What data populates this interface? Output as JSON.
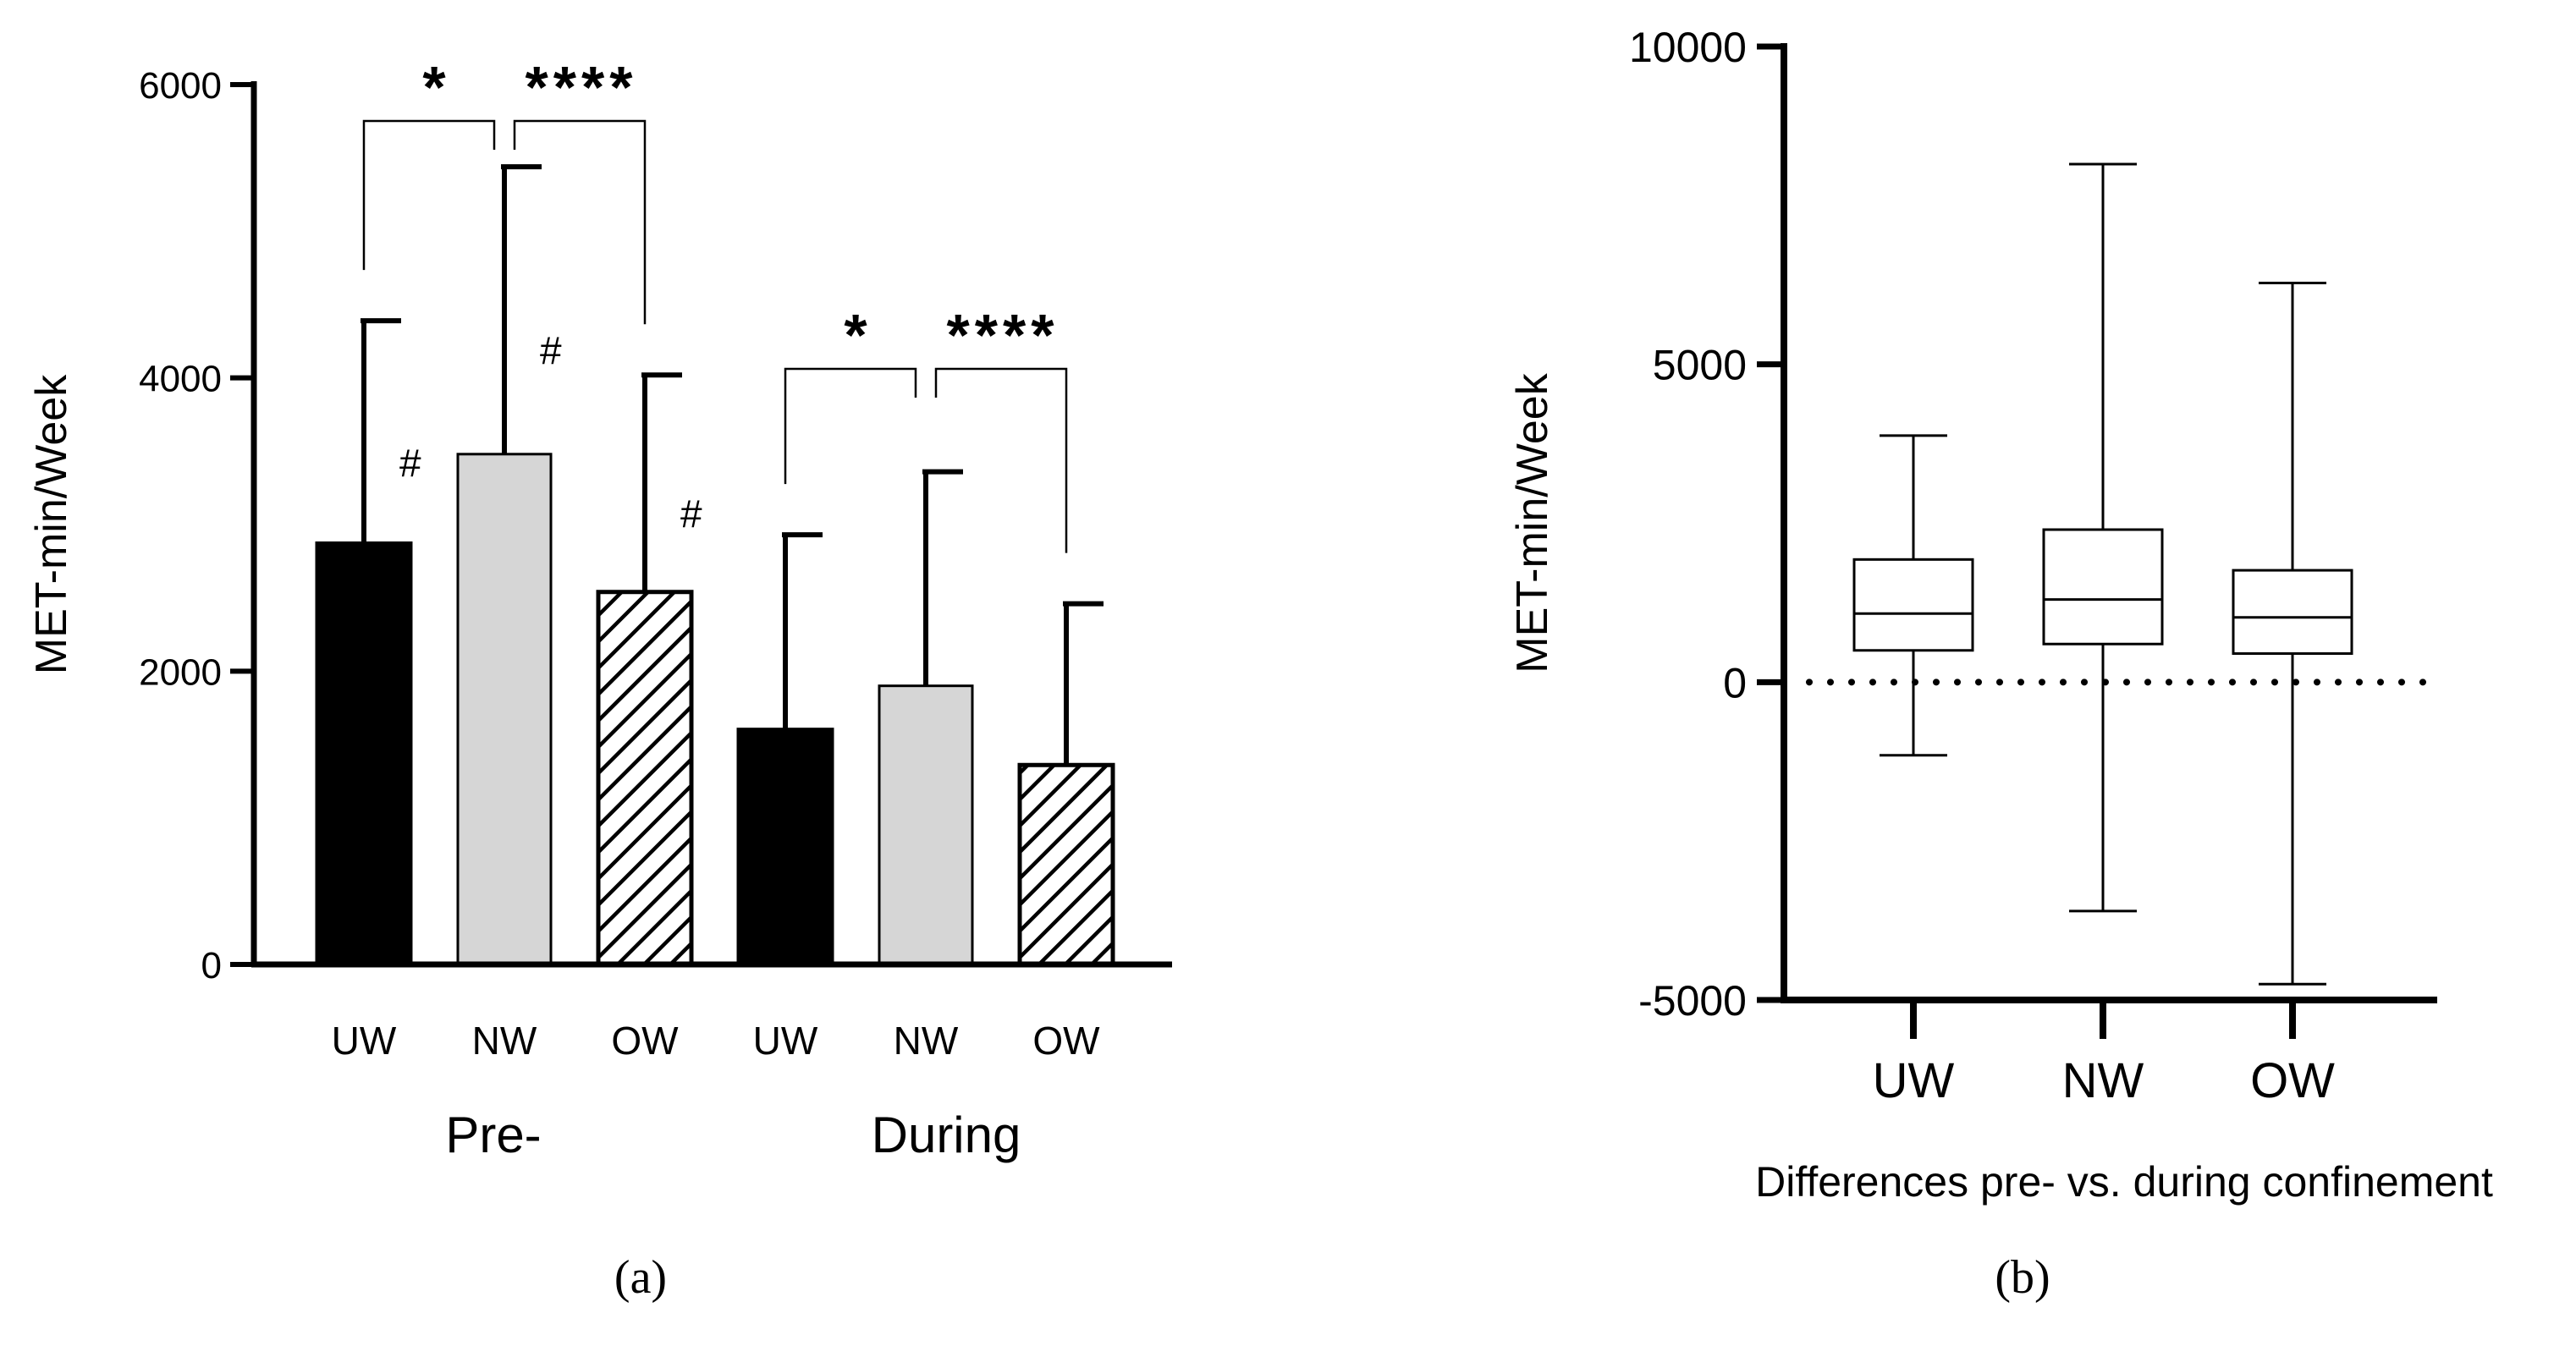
{
  "chart_data": [
    {
      "panel_label": "(a)",
      "type": "bar",
      "ylabel": "MET-min/Week",
      "ylim": [
        0,
        6000
      ],
      "yticks": [
        0,
        2000,
        4000,
        6000
      ],
      "groups": [
        {
          "label": "Pre-",
          "bars": [
            {
              "category": "UW",
              "value": 2870,
              "error": 1520,
              "fill": "solid-black",
              "annotation": "#"
            },
            {
              "category": "NW",
              "value": 3480,
              "error": 1960,
              "fill": "light-gray",
              "annotation": "#"
            },
            {
              "category": "OW",
              "value": 2540,
              "error": 1480,
              "fill": "diagonal-hatch",
              "annotation": "#"
            }
          ],
          "comparisons": [
            {
              "between": [
                "UW",
                "NW"
              ],
              "label": "*"
            },
            {
              "between": [
                "NW",
                "OW"
              ],
              "label": "****"
            }
          ]
        },
        {
          "label": "During",
          "bars": [
            {
              "category": "UW",
              "value": 1600,
              "error": 1330,
              "fill": "solid-black",
              "annotation": ""
            },
            {
              "category": "NW",
              "value": 1900,
              "error": 1460,
              "fill": "light-gray",
              "annotation": ""
            },
            {
              "category": "OW",
              "value": 1360,
              "error": 1100,
              "fill": "diagonal-hatch",
              "annotation": ""
            }
          ],
          "comparisons": [
            {
              "between": [
                "UW",
                "NW"
              ],
              "label": "*"
            },
            {
              "between": [
                "NW",
                "OW"
              ],
              "label": "****"
            }
          ]
        }
      ]
    },
    {
      "panel_label": "(b)",
      "type": "box",
      "ylabel": "MET-min/Week",
      "xlabel": "Differences pre- vs. during confinement",
      "ylim": [
        -5000,
        10000
      ],
      "yticks": [
        -5000,
        0,
        5000,
        10000
      ],
      "reference_line": 0,
      "boxes": [
        {
          "category": "UW",
          "min": -1150,
          "q1": 500,
          "median": 1080,
          "q3": 1930,
          "max": 3880
        },
        {
          "category": "NW",
          "min": -3600,
          "q1": 600,
          "median": 1300,
          "q3": 2400,
          "max": 8150
        },
        {
          "category": "OW",
          "min": -4750,
          "q1": 450,
          "median": 1020,
          "q3": 1760,
          "max": 6280
        }
      ]
    }
  ]
}
